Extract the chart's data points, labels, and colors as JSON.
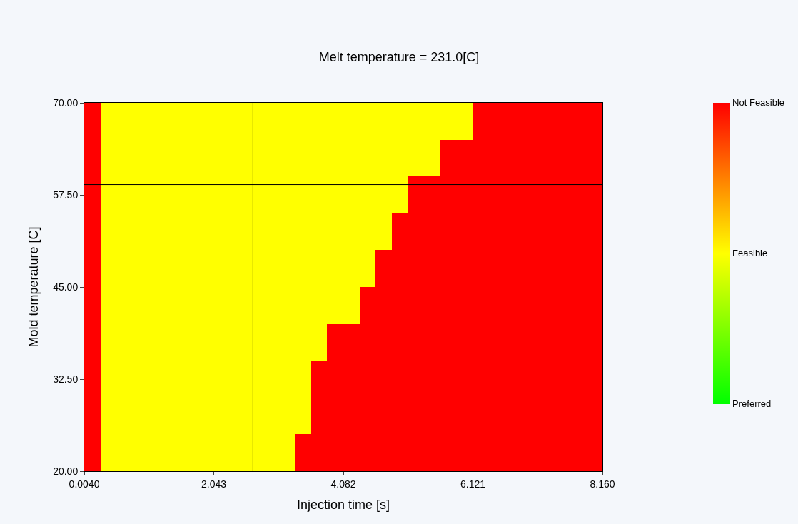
{
  "chart_data": {
    "type": "heatmap",
    "title": "Melt temperature = 231.0[C]",
    "xlabel": "Injection time [s]",
    "ylabel": "Mold temperature [C]",
    "cells": [
      [
        2,
        1,
        1,
        1,
        1,
        1,
        1,
        1,
        1,
        1,
        1,
        1,
        1,
        1,
        1,
        1,
        1,
        1,
        1,
        1,
        1,
        1,
        1,
        1,
        2,
        2,
        2,
        2,
        2,
        2,
        2,
        2
      ],
      [
        2,
        1,
        1,
        1,
        1,
        1,
        1,
        1,
        1,
        1,
        1,
        1,
        1,
        1,
        1,
        1,
        1,
        1,
        1,
        1,
        1,
        1,
        2,
        2,
        2,
        2,
        2,
        2,
        2,
        2,
        2,
        2
      ],
      [
        2,
        1,
        1,
        1,
        1,
        1,
        1,
        1,
        1,
        1,
        1,
        1,
        1,
        1,
        1,
        1,
        1,
        1,
        1,
        1,
        2,
        2,
        2,
        2,
        2,
        2,
        2,
        2,
        2,
        2,
        2,
        2
      ],
      [
        2,
        1,
        1,
        1,
        1,
        1,
        1,
        1,
        1,
        1,
        1,
        1,
        1,
        1,
        1,
        1,
        1,
        1,
        1,
        2,
        2,
        2,
        2,
        2,
        2,
        2,
        2,
        2,
        2,
        2,
        2,
        2
      ],
      [
        2,
        1,
        1,
        1,
        1,
        1,
        1,
        1,
        1,
        1,
        1,
        1,
        1,
        1,
        1,
        1,
        1,
        1,
        2,
        2,
        2,
        2,
        2,
        2,
        2,
        2,
        2,
        2,
        2,
        2,
        2,
        2
      ],
      [
        2,
        1,
        1,
        1,
        1,
        1,
        1,
        1,
        1,
        1,
        1,
        1,
        1,
        1,
        1,
        1,
        1,
        2,
        2,
        2,
        2,
        2,
        2,
        2,
        2,
        2,
        2,
        2,
        2,
        2,
        2,
        2
      ],
      [
        2,
        1,
        1,
        1,
        1,
        1,
        1,
        1,
        1,
        1,
        1,
        1,
        1,
        1,
        1,
        2,
        2,
        2,
        2,
        2,
        2,
        2,
        2,
        2,
        2,
        2,
        2,
        2,
        2,
        2,
        2,
        2
      ],
      [
        2,
        1,
        1,
        1,
        1,
        1,
        1,
        1,
        1,
        1,
        1,
        1,
        1,
        1,
        2,
        2,
        2,
        2,
        2,
        2,
        2,
        2,
        2,
        2,
        2,
        2,
        2,
        2,
        2,
        2,
        2,
        2
      ],
      [
        2,
        1,
        1,
        1,
        1,
        1,
        1,
        1,
        1,
        1,
        1,
        1,
        1,
        1,
        2,
        2,
        2,
        2,
        2,
        2,
        2,
        2,
        2,
        2,
        2,
        2,
        2,
        2,
        2,
        2,
        2,
        2
      ],
      [
        2,
        1,
        1,
        1,
        1,
        1,
        1,
        1,
        1,
        1,
        1,
        1,
        1,
        2,
        2,
        2,
        2,
        2,
        2,
        2,
        2,
        2,
        2,
        2,
        2,
        2,
        2,
        2,
        2,
        2,
        2,
        2
      ]
    ],
    "colors": [
      "#00ff00",
      "#ffff00",
      "#ff0000"
    ],
    "clim": [
      0,
      2
    ],
    "cticks": [
      {
        "value": 2,
        "label": "Not Feasible"
      },
      {
        "value": 1,
        "label": "Feasible"
      },
      {
        "value": 0,
        "label": "Preferred"
      }
    ],
    "xlim": [
      0.004,
      8.16
    ],
    "xticks": [
      {
        "value": 0.004,
        "label": "0.0040"
      },
      2.043,
      4.082,
      6.121,
      {
        "value": 8.16,
        "label": "8.160"
      }
    ],
    "ylim": [
      20,
      70
    ],
    "yticks": [
      {
        "value": 20,
        "label": "20.00"
      },
      {
        "value": 32.5,
        "label": "32.50"
      },
      {
        "value": 45,
        "label": "45.00"
      },
      {
        "value": 57.5,
        "label": "57.50"
      },
      {
        "value": 70,
        "label": "70.00"
      }
    ],
    "ref_lines": [
      {
        "axis": "x",
        "value": 2.66,
        "color": "#000000"
      },
      {
        "axis": "y",
        "value": 58.9,
        "color": "#000000"
      }
    ]
  }
}
